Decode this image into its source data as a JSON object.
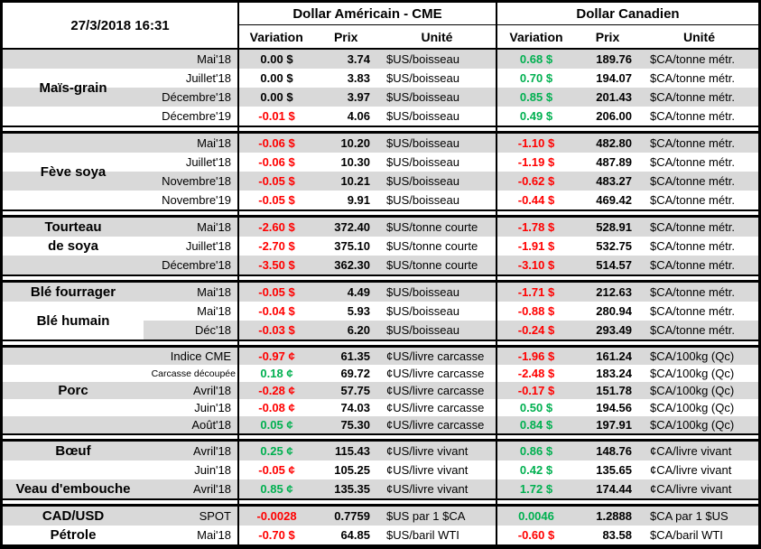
{
  "meta": {
    "timestamp": "27/3/2018 16:31"
  },
  "header": {
    "us_title": "Dollar Américain - CME",
    "ca_title": "Dollar Canadien",
    "col_variation": "Variation",
    "col_prix": "Prix",
    "col_unite": "Unité"
  },
  "colors": {
    "positive": "#00B050",
    "negative": "#FF0000",
    "neutral": "#000000",
    "stripe": "#D9D9D9"
  },
  "sections": [
    {
      "labels": [
        {
          "text": "Maïs-grain",
          "row": 1,
          "span": 4
        }
      ],
      "rows": [
        {
          "month": "Mai'18",
          "us_var": "0.00 $",
          "us_dir": "zero",
          "us_prix": "3.74",
          "us_unit": "$US/boisseau",
          "ca_var": "0.68 $",
          "ca_dir": "pos",
          "ca_prix": "189.76",
          "ca_unit": "$CA/tonne métr.",
          "stripe": "g"
        },
        {
          "month": "Juillet'18",
          "us_var": "0.00 $",
          "us_dir": "zero",
          "us_prix": "3.83",
          "us_unit": "$US/boisseau",
          "ca_var": "0.70 $",
          "ca_dir": "pos",
          "ca_prix": "194.07",
          "ca_unit": "$CA/tonne métr.",
          "stripe": "w"
        },
        {
          "month": "Décembre'18",
          "us_var": "0.00 $",
          "us_dir": "zero",
          "us_prix": "3.97",
          "us_unit": "$US/boisseau",
          "ca_var": "0.85 $",
          "ca_dir": "pos",
          "ca_prix": "201.43",
          "ca_unit": "$CA/tonne métr.",
          "stripe": "g"
        },
        {
          "month": "Décembre'19",
          "us_var": "-0.01 $",
          "us_dir": "neg",
          "us_prix": "4.06",
          "us_unit": "$US/boisseau",
          "ca_var": "0.49 $",
          "ca_dir": "pos",
          "ca_prix": "206.00",
          "ca_unit": "$CA/tonne métr.",
          "stripe": "w"
        }
      ]
    },
    {
      "labels": [
        {
          "text": "Fève soya",
          "row": 1,
          "span": 4
        }
      ],
      "rows": [
        {
          "month": "Mai'18",
          "us_var": "-0.06 $",
          "us_dir": "neg",
          "us_prix": "10.20",
          "us_unit": "$US/boisseau",
          "ca_var": "-1.10 $",
          "ca_dir": "neg",
          "ca_prix": "482.80",
          "ca_unit": "$CA/tonne métr.",
          "stripe": "g"
        },
        {
          "month": "Juillet'18",
          "us_var": "-0.06 $",
          "us_dir": "neg",
          "us_prix": "10.30",
          "us_unit": "$US/boisseau",
          "ca_var": "-1.19 $",
          "ca_dir": "neg",
          "ca_prix": "487.89",
          "ca_unit": "$CA/tonne métr.",
          "stripe": "w"
        },
        {
          "month": "Novembre'18",
          "us_var": "-0.05 $",
          "us_dir": "neg",
          "us_prix": "10.21",
          "us_unit": "$US/boisseau",
          "ca_var": "-0.62 $",
          "ca_dir": "neg",
          "ca_prix": "483.27",
          "ca_unit": "$CA/tonne métr.",
          "stripe": "g"
        },
        {
          "month": "Novembre'19",
          "us_var": "-0.05 $",
          "us_dir": "neg",
          "us_prix": "9.91",
          "us_unit": "$US/boisseau",
          "ca_var": "-0.44 $",
          "ca_dir": "neg",
          "ca_prix": "469.42",
          "ca_unit": "$CA/tonne métr.",
          "stripe": "w"
        }
      ]
    },
    {
      "labels": [
        {
          "text": "Tourteau",
          "row": 1,
          "span": 1
        },
        {
          "text": "de soya",
          "row": 2,
          "span": 1
        }
      ],
      "rows": [
        {
          "month": "Mai'18",
          "us_var": "-2.60 $",
          "us_dir": "neg",
          "us_prix": "372.40",
          "us_unit": "$US/tonne courte",
          "ca_var": "-1.78 $",
          "ca_dir": "neg",
          "ca_prix": "528.91",
          "ca_unit": "$CA/tonne métr.",
          "stripe": "g"
        },
        {
          "month": "Juillet'18",
          "us_var": "-2.70 $",
          "us_dir": "neg",
          "us_prix": "375.10",
          "us_unit": "$US/tonne courte",
          "ca_var": "-1.91 $",
          "ca_dir": "neg",
          "ca_prix": "532.75",
          "ca_unit": "$CA/tonne métr.",
          "stripe": "w"
        },
        {
          "month": "Décembre'18",
          "us_var": "-3.50 $",
          "us_dir": "neg",
          "us_prix": "362.30",
          "us_unit": "$US/tonne courte",
          "ca_var": "-3.10 $",
          "ca_dir": "neg",
          "ca_prix": "514.57",
          "ca_unit": "$CA/tonne métr.",
          "stripe": "g"
        }
      ]
    },
    {
      "labels": [
        {
          "text": "Blé fourrager",
          "row": 1,
          "span": 1
        },
        {
          "text": "Blé humain",
          "row": 2,
          "span": 2
        }
      ],
      "rows": [
        {
          "month": "Mai'18",
          "us_var": "-0.05 $",
          "us_dir": "neg",
          "us_prix": "4.49",
          "us_unit": "$US/boisseau",
          "ca_var": "-1.71 $",
          "ca_dir": "neg",
          "ca_prix": "212.63",
          "ca_unit": "$CA/tonne métr.",
          "stripe": "g"
        },
        {
          "month": "Mai'18",
          "us_var": "-0.04 $",
          "us_dir": "neg",
          "us_prix": "5.93",
          "us_unit": "$US/boisseau",
          "ca_var": "-0.88 $",
          "ca_dir": "neg",
          "ca_prix": "280.94",
          "ca_unit": "$CA/tonne métr.",
          "stripe": "w"
        },
        {
          "month": "Déc'18",
          "us_var": "-0.03 $",
          "us_dir": "neg",
          "us_prix": "6.20",
          "us_unit": "$US/boisseau",
          "ca_var": "-0.24 $",
          "ca_dir": "neg",
          "ca_prix": "293.49",
          "ca_unit": "$CA/tonne métr.",
          "stripe": "gr"
        }
      ]
    },
    {
      "labels": [
        {
          "text": "Porc",
          "row": 1,
          "span": 5
        }
      ],
      "rows": [
        {
          "month": "Indice CME",
          "us_var": "-0.97 ¢",
          "us_dir": "neg",
          "us_prix": "61.35",
          "us_unit": "¢US/livre carcasse",
          "ca_var": "-1.96 $",
          "ca_dir": "neg",
          "ca_prix": "161.24",
          "ca_unit": "$CA/100kg (Qc)",
          "stripe": "g"
        },
        {
          "month": "Carcasse découpée",
          "month_small": true,
          "us_var": "0.18 ¢",
          "us_dir": "pos",
          "us_prix": "69.72",
          "us_unit": "¢US/livre carcasse",
          "ca_var": "-2.48 $",
          "ca_dir": "neg",
          "ca_prix": "183.24",
          "ca_unit": "$CA/100kg (Qc)",
          "stripe": "w"
        },
        {
          "month": "Avril'18",
          "us_var": "-0.28 ¢",
          "us_dir": "neg",
          "us_prix": "57.75",
          "us_unit": "¢US/livre carcasse",
          "ca_var": "-0.17 $",
          "ca_dir": "neg",
          "ca_prix": "151.78",
          "ca_unit": "$CA/100kg (Qc)",
          "stripe": "g"
        },
        {
          "month": "Juin'18",
          "us_var": "-0.08 ¢",
          "us_dir": "neg",
          "us_prix": "74.03",
          "us_unit": "¢US/livre carcasse",
          "ca_var": "0.50 $",
          "ca_dir": "pos",
          "ca_prix": "194.56",
          "ca_unit": "$CA/100kg (Qc)",
          "stripe": "w"
        },
        {
          "month": "Août'18",
          "us_var": "0.05 ¢",
          "us_dir": "pos",
          "us_prix": "75.30",
          "us_unit": "¢US/livre carcasse",
          "ca_var": "0.84 $",
          "ca_dir": "pos",
          "ca_prix": "197.91",
          "ca_unit": "$CA/100kg (Qc)",
          "stripe": "g"
        }
      ]
    },
    {
      "labels": [
        {
          "text": "Bœuf",
          "row": 1,
          "span": 1
        },
        {
          "text": "Veau d'embouche",
          "row": 3,
          "span": 1
        }
      ],
      "rows": [
        {
          "month": "Avril'18",
          "us_var": "0.25 ¢",
          "us_dir": "pos",
          "us_prix": "115.43",
          "us_unit": "¢US/livre vivant",
          "ca_var": "0.86 $",
          "ca_dir": "pos",
          "ca_prix": "148.76",
          "ca_unit": "¢CA/livre vivant",
          "stripe": "g"
        },
        {
          "month": "Juin'18",
          "us_var": "-0.05 ¢",
          "us_dir": "neg",
          "us_prix": "105.25",
          "us_unit": "¢US/livre vivant",
          "ca_var": "0.42 $",
          "ca_dir": "pos",
          "ca_prix": "135.65",
          "ca_unit": "¢CA/livre vivant",
          "stripe": "w"
        },
        {
          "month": "Avril'18",
          "us_var": "0.85 ¢",
          "us_dir": "pos",
          "us_prix": "135.35",
          "us_unit": "¢US/livre vivant",
          "ca_var": "1.72 $",
          "ca_dir": "pos",
          "ca_prix": "174.44",
          "ca_unit": "¢CA/livre vivant",
          "stripe": "g"
        }
      ]
    },
    {
      "labels": [
        {
          "text": "CAD/USD",
          "row": 1,
          "span": 1
        },
        {
          "text": "Pétrole",
          "row": 2,
          "span": 1
        }
      ],
      "rows": [
        {
          "month": "SPOT",
          "us_var": "-0.0028",
          "us_dir": "neg",
          "us_prix": "0.7759",
          "us_unit": "$US par 1 $CA",
          "ca_var": "0.0046",
          "ca_dir": "pos",
          "ca_prix": "1.2888",
          "ca_unit": "$CA par 1 $US",
          "stripe": "g"
        },
        {
          "month": "Mai'18",
          "us_var": "-0.70 $",
          "us_dir": "neg",
          "us_prix": "64.85",
          "us_unit": "$US/baril WTI",
          "ca_var": "-0.60 $",
          "ca_dir": "neg",
          "ca_prix": "83.58",
          "ca_unit": "$CA/baril WTI",
          "stripe": "w"
        }
      ]
    }
  ]
}
